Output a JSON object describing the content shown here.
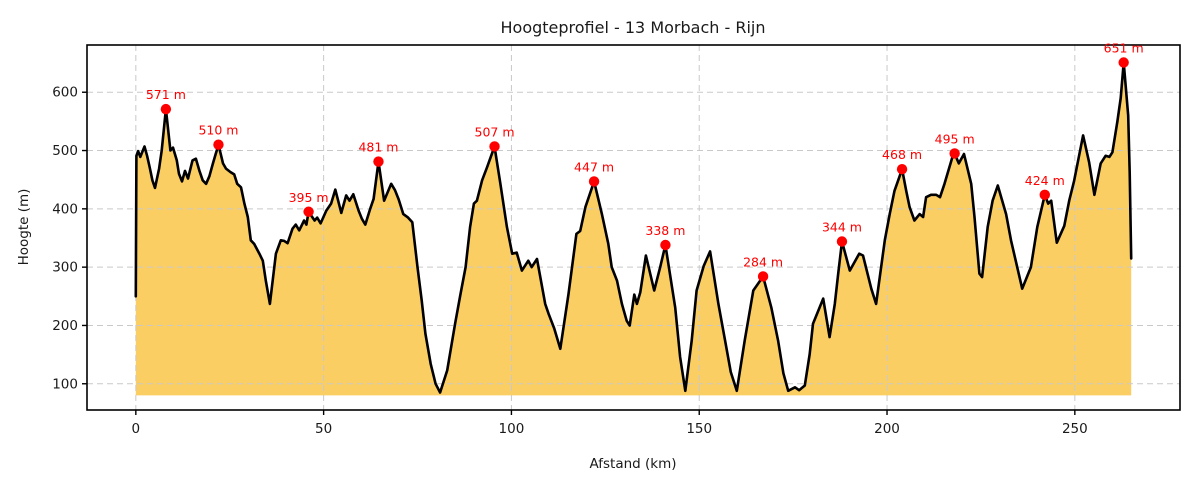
{
  "figure": {
    "title": "Hoogteprofiel - 13 Morbach - Rijn"
  },
  "chart_data": {
    "type": "area",
    "title": "Hoogteprofiel - 13 Morbach - Rijn",
    "xlabel": "Afstand (km)",
    "ylabel": "Hoogte (m)",
    "xlim": [
      -13,
      278
    ],
    "ylim": [
      55,
      681
    ],
    "xticks": [
      0,
      50,
      100,
      150,
      200,
      250
    ],
    "yticks": [
      100,
      200,
      300,
      400,
      500,
      600
    ],
    "grid": true,
    "legend": false,
    "fill_baseline_m": 80,
    "unit": "m",
    "profile": [
      [
        0,
        250
      ],
      [
        0.15,
        491
      ],
      [
        0.6,
        499
      ],
      [
        1.2,
        489
      ],
      [
        2.3,
        507
      ],
      [
        3.0,
        491
      ],
      [
        3.7,
        471
      ],
      [
        4.4,
        449
      ],
      [
        5.1,
        436
      ],
      [
        6.2,
        469
      ],
      [
        6.9,
        500
      ],
      [
        8,
        571
      ],
      [
        9.2,
        500
      ],
      [
        9.9,
        505
      ],
      [
        10.9,
        483
      ],
      [
        11.5,
        460
      ],
      [
        12.3,
        447
      ],
      [
        13.1,
        465
      ],
      [
        13.9,
        452
      ],
      [
        15.1,
        483
      ],
      [
        16,
        486
      ],
      [
        16.9,
        466
      ],
      [
        17.8,
        449
      ],
      [
        18.7,
        443
      ],
      [
        19.6,
        456
      ],
      [
        20.5,
        477
      ],
      [
        21.2,
        493
      ],
      [
        22,
        510
      ],
      [
        23.2,
        478
      ],
      [
        24,
        469
      ],
      [
        25.2,
        463
      ],
      [
        26.2,
        459
      ],
      [
        27,
        443
      ],
      [
        28,
        437
      ],
      [
        28.9,
        409
      ],
      [
        29.8,
        386
      ],
      [
        30.6,
        346
      ],
      [
        31.5,
        340
      ],
      [
        32.9,
        323
      ],
      [
        33.8,
        311
      ],
      [
        34.6,
        277
      ],
      [
        35.7,
        237
      ],
      [
        37.3,
        323
      ],
      [
        38.6,
        346
      ],
      [
        39.5,
        345
      ],
      [
        40.4,
        341
      ],
      [
        41.7,
        366
      ],
      [
        42.6,
        373
      ],
      [
        43.5,
        363
      ],
      [
        44.8,
        380
      ],
      [
        45.4,
        373
      ],
      [
        46,
        395
      ],
      [
        47.6,
        380
      ],
      [
        48.3,
        385
      ],
      [
        49.2,
        375
      ],
      [
        50.7,
        397
      ],
      [
        52,
        409
      ],
      [
        53.1,
        433
      ],
      [
        54.7,
        393
      ],
      [
        56,
        423
      ],
      [
        56.9,
        414
      ],
      [
        57.9,
        425
      ],
      [
        59.3,
        397
      ],
      [
        60.2,
        383
      ],
      [
        61.1,
        373
      ],
      [
        62.4,
        400
      ],
      [
        63.3,
        417
      ],
      [
        64.6,
        481
      ],
      [
        66.1,
        414
      ],
      [
        68,
        443
      ],
      [
        69,
        432
      ],
      [
        70,
        416
      ],
      [
        71.2,
        391
      ],
      [
        72.5,
        385
      ],
      [
        73.6,
        377
      ],
      [
        75,
        300
      ],
      [
        76.1,
        243
      ],
      [
        77.1,
        186
      ],
      [
        78.5,
        134
      ],
      [
        79.8,
        100
      ],
      [
        81,
        85
      ],
      [
        82.9,
        123
      ],
      [
        85,
        203
      ],
      [
        86.4,
        252
      ],
      [
        87.8,
        300
      ],
      [
        89,
        369
      ],
      [
        90,
        409
      ],
      [
        90.8,
        414
      ],
      [
        92.2,
        449
      ],
      [
        93.5,
        471
      ],
      [
        95.5,
        507
      ],
      [
        97,
        445
      ],
      [
        98.8,
        369
      ],
      [
        100.2,
        323
      ],
      [
        101.4,
        325
      ],
      [
        102.8,
        294
      ],
      [
        104.5,
        311
      ],
      [
        105.4,
        300
      ],
      [
        106.8,
        314
      ],
      [
        109,
        237
      ],
      [
        109.9,
        220
      ],
      [
        111.4,
        195
      ],
      [
        113,
        160
      ],
      [
        115.2,
        254
      ],
      [
        117.3,
        357
      ],
      [
        118.3,
        362
      ],
      [
        119.7,
        403
      ],
      [
        122,
        447
      ],
      [
        124.1,
        391
      ],
      [
        125.8,
        340
      ],
      [
        126.7,
        300
      ],
      [
        128.1,
        277
      ],
      [
        129.4,
        237
      ],
      [
        130.7,
        208
      ],
      [
        131.5,
        200
      ],
      [
        132.7,
        253
      ],
      [
        133.4,
        237
      ],
      [
        134.3,
        257
      ],
      [
        135.8,
        320
      ],
      [
        138,
        260
      ],
      [
        139.6,
        300
      ],
      [
        141,
        338
      ],
      [
        143.6,
        231
      ],
      [
        144.9,
        146
      ],
      [
        146.3,
        88
      ],
      [
        148,
        174
      ],
      [
        149.3,
        260
      ],
      [
        151.2,
        302
      ],
      [
        152.9,
        327
      ],
      [
        155.1,
        237
      ],
      [
        156.9,
        174
      ],
      [
        158.4,
        120
      ],
      [
        160,
        88
      ],
      [
        162.1,
        174
      ],
      [
        164.4,
        260
      ],
      [
        167,
        284
      ],
      [
        169.2,
        231
      ],
      [
        171,
        174
      ],
      [
        172.4,
        118
      ],
      [
        173.7,
        88
      ],
      [
        175.5,
        94
      ],
      [
        176.6,
        89
      ],
      [
        178.1,
        97
      ],
      [
        179.4,
        151
      ],
      [
        180.3,
        203
      ],
      [
        183,
        246
      ],
      [
        184.7,
        180
      ],
      [
        186.1,
        237
      ],
      [
        187,
        289
      ],
      [
        188,
        344
      ],
      [
        190.1,
        294
      ],
      [
        192.6,
        323
      ],
      [
        193.6,
        320
      ],
      [
        195.8,
        263
      ],
      [
        197.1,
        237
      ],
      [
        199.4,
        346
      ],
      [
        200.7,
        391
      ],
      [
        202,
        431
      ],
      [
        204,
        468
      ],
      [
        205.1,
        431
      ],
      [
        206,
        403
      ],
      [
        207.3,
        380
      ],
      [
        208.7,
        391
      ],
      [
        209.6,
        386
      ],
      [
        210.4,
        420
      ],
      [
        211.7,
        424
      ],
      [
        213.1,
        424
      ],
      [
        214.1,
        420
      ],
      [
        215.3,
        443
      ],
      [
        217.5,
        491
      ],
      [
        218,
        495
      ],
      [
        219.1,
        478
      ],
      [
        220.5,
        494
      ],
      [
        222.4,
        443
      ],
      [
        223.3,
        386
      ],
      [
        224.6,
        289
      ],
      [
        225.3,
        283
      ],
      [
        226.8,
        369
      ],
      [
        228.1,
        414
      ],
      [
        229.5,
        440
      ],
      [
        231.7,
        391
      ],
      [
        233,
        346
      ],
      [
        236,
        263
      ],
      [
        238.3,
        300
      ],
      [
        240,
        369
      ],
      [
        242,
        424
      ],
      [
        242.9,
        409
      ],
      [
        243.7,
        414
      ],
      [
        245.2,
        342
      ],
      [
        247.2,
        371
      ],
      [
        248.5,
        414
      ],
      [
        249.8,
        448
      ],
      [
        252.2,
        526
      ],
      [
        253.8,
        480
      ],
      [
        255.2,
        424
      ],
      [
        256.9,
        478
      ],
      [
        258.2,
        491
      ],
      [
        259.2,
        489
      ],
      [
        260,
        497
      ],
      [
        261.3,
        549
      ],
      [
        262.2,
        590
      ],
      [
        263,
        651
      ],
      [
        264.2,
        560
      ],
      [
        264.6,
        462
      ],
      [
        265,
        315
      ]
    ],
    "peaks": [
      {
        "x": 8,
        "y": 571,
        "label": "571 m"
      },
      {
        "x": 22,
        "y": 510,
        "label": "510 m"
      },
      {
        "x": 46,
        "y": 395,
        "label": "395 m"
      },
      {
        "x": 64.6,
        "y": 481,
        "label": "481 m"
      },
      {
        "x": 95.5,
        "y": 507,
        "label": "507 m"
      },
      {
        "x": 122,
        "y": 447,
        "label": "447 m"
      },
      {
        "x": 141,
        "y": 338,
        "label": "338 m"
      },
      {
        "x": 167,
        "y": 284,
        "label": "284 m"
      },
      {
        "x": 188,
        "y": 344,
        "label": "344 m"
      },
      {
        "x": 204,
        "y": 468,
        "label": "468 m"
      },
      {
        "x": 218,
        "y": 495,
        "label": "495 m"
      },
      {
        "x": 242,
        "y": 424,
        "label": "424 m"
      },
      {
        "x": 263,
        "y": 651,
        "label": "651 m"
      }
    ],
    "colors": {
      "fill": "#fbce63",
      "line": "#000000",
      "marker": "#ff0000",
      "marker_label": "#ff0000",
      "grid": "#c9c9c9",
      "spine": "#000000",
      "tick_text": "#1a1a1a",
      "background": "#ffffff"
    }
  }
}
